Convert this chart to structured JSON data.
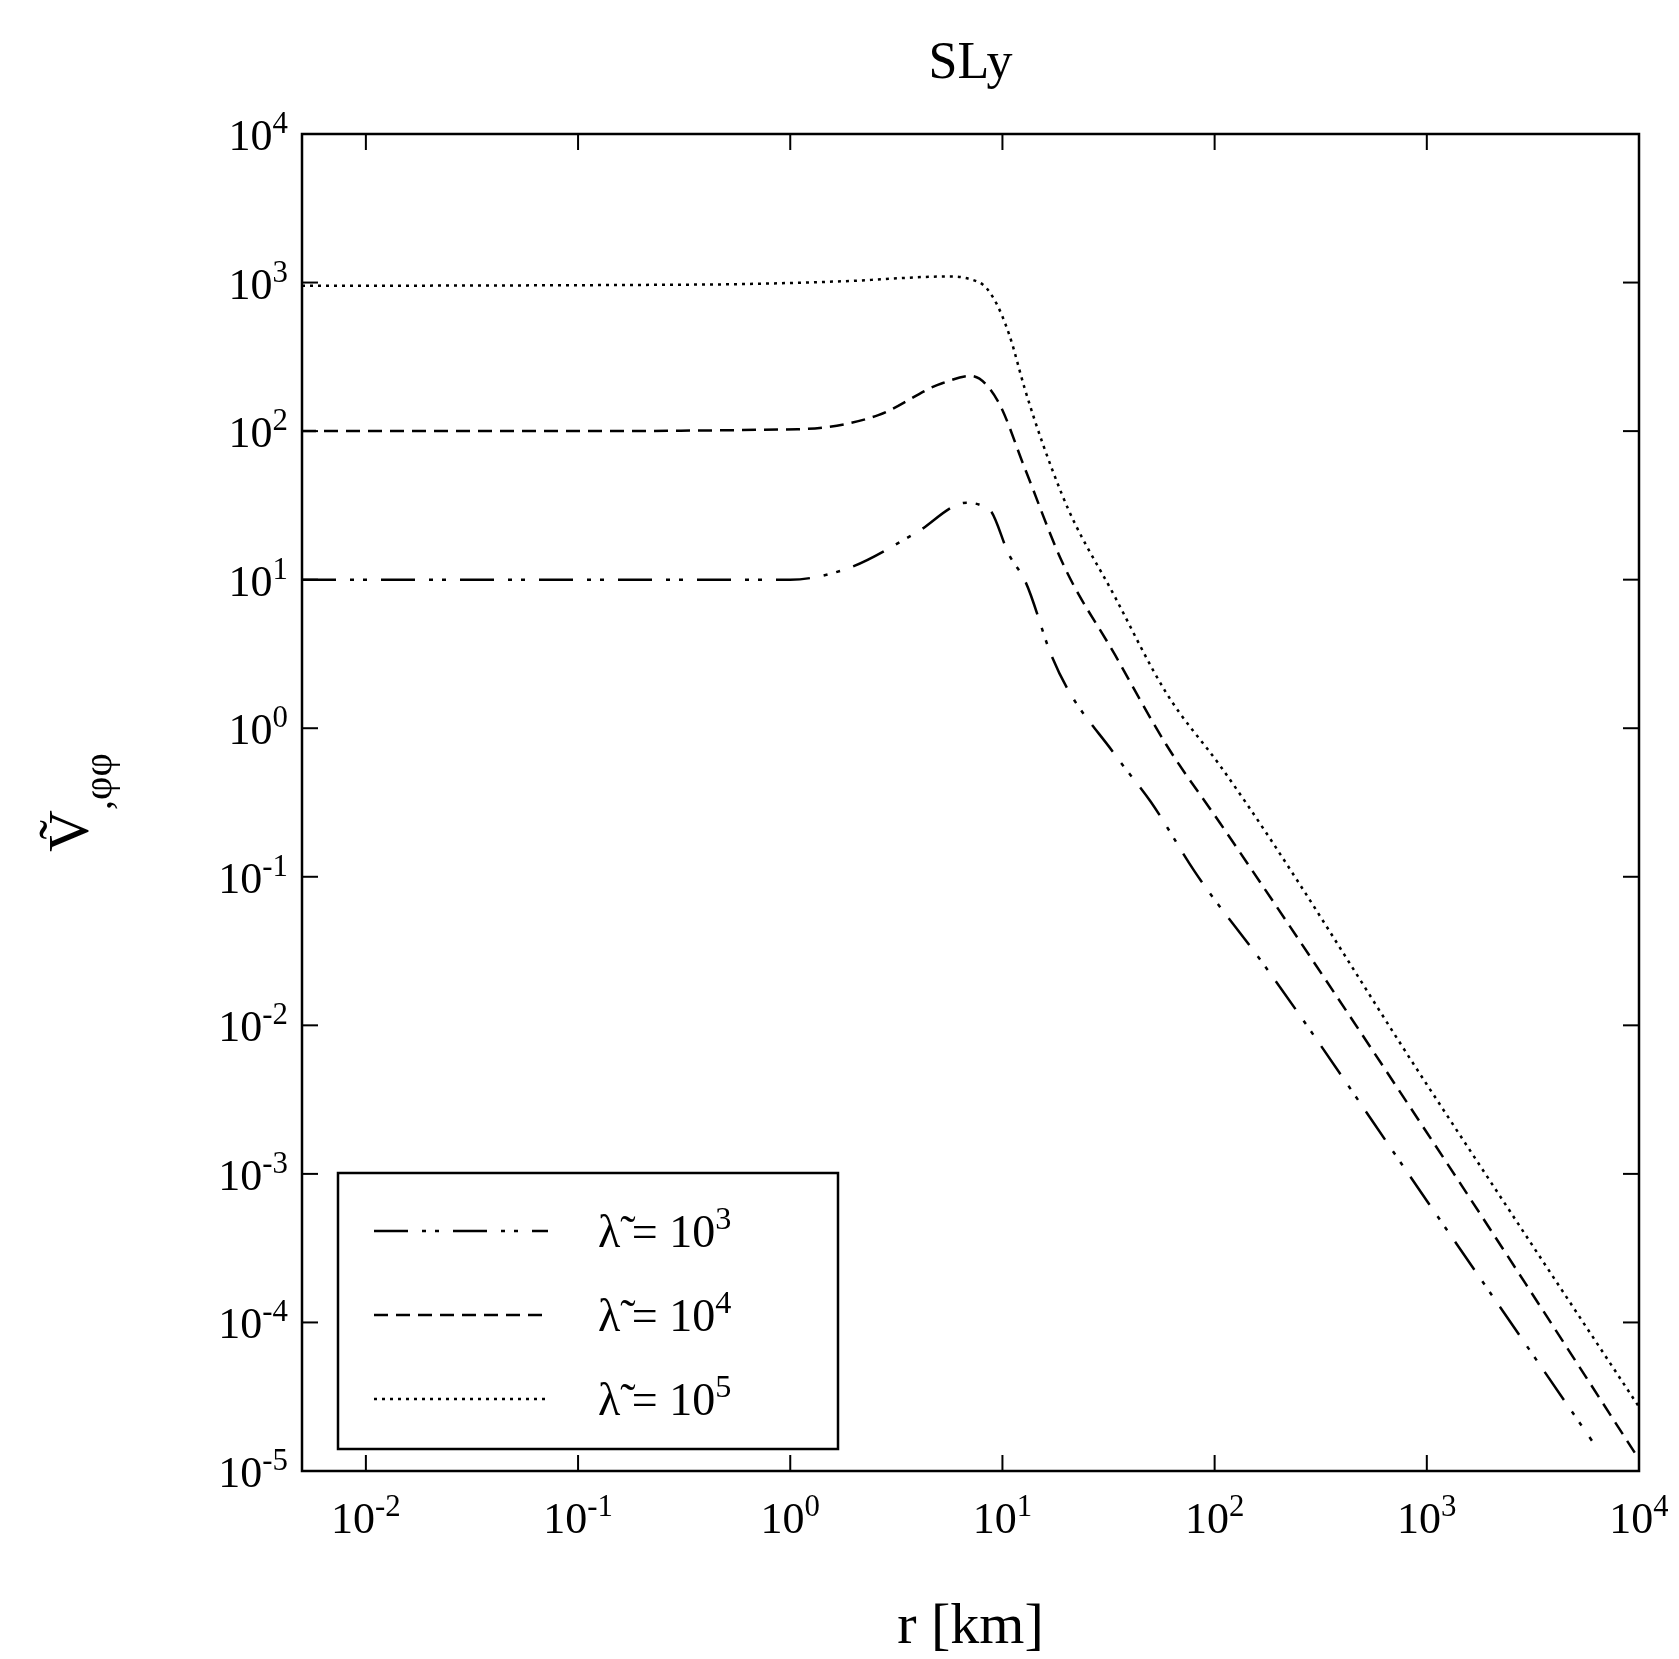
{
  "chart_data": {
    "type": "line",
    "title": "SLy",
    "xlabel": "r [km]",
    "ylabel": "Ṽ$_{,φφ}$",
    "log": "xy",
    "grid": false,
    "legend": "bottom left",
    "xlim": [
      0.005,
      10000
    ],
    "ylim": [
      1e-05,
      10000
    ],
    "xticks": [
      {
        "value": 0.01,
        "label": "10$^{-2}$"
      },
      {
        "value": 0.1,
        "label": "10$^{-1}$"
      },
      {
        "value": 1,
        "label": "10$^{0}$"
      },
      {
        "value": 10,
        "label": "10$^{1}$"
      },
      {
        "value": 100,
        "label": "10$^{2}$"
      },
      {
        "value": 1000,
        "label": "10$^{3}$"
      },
      {
        "value": 10000,
        "label": "10$^{4}$"
      }
    ],
    "yticks": [
      {
        "value": 1e-05,
        "label": "10$^{-5}$"
      },
      {
        "value": 0.0001,
        "label": "10$^{-4}$"
      },
      {
        "value": 0.001,
        "label": "10$^{-3}$"
      },
      {
        "value": 0.01,
        "label": "10$^{-2}$"
      },
      {
        "value": 0.1,
        "label": "10$^{-1}$"
      },
      {
        "value": 1,
        "label": "10$^{0}$"
      },
      {
        "value": 10,
        "label": "10$^{1}$"
      },
      {
        "value": 100,
        "label": "10$^{2}$"
      },
      {
        "value": 1000,
        "label": "10$^{3}$"
      },
      {
        "value": 10000,
        "label": "10$^{4}$"
      }
    ],
    "series": [
      {
        "name": "λ̃ = 10$^{3}$",
        "color": "#000000",
        "line_style": "dashdot",
        "x": [
          0.005,
          0.1,
          0.4,
          1,
          1.8,
          3.9,
          6.8,
          8.6,
          10.8,
          12.7,
          17,
          34,
          50,
          80,
          166,
          1000,
          6000
        ],
        "values": [
          10,
          10,
          10,
          10,
          11.7,
          20.6,
          33,
          30,
          14.5,
          10,
          3.1,
          0.66,
          0.32,
          0.11,
          0.027,
          0.00066,
          1.6e-05
        ]
      },
      {
        "name": "λ̃ = 10$^{4}$",
        "color": "#000000",
        "line_style": "dashed",
        "x": [
          0.005,
          0.1,
          1.08,
          2.6,
          5.2,
          7.1,
          9.5,
          12.7,
          19,
          34,
          59,
          106,
          1000,
          10000
        ],
        "values": [
          100,
          100,
          103,
          128,
          210,
          235,
          160,
          57,
          13.4,
          3.1,
          0.78,
          0.23,
          0.0019,
          1.2e-05
        ]
      },
      {
        "name": "λ̃ = 10$^{5}$",
        "color": "#000000",
        "line_style": "dotted",
        "x": [
          0.005,
          0.4,
          1.76,
          5.75,
          7.8,
          9.1,
          10.8,
          12.7,
          19,
          34,
          59,
          106,
          1000,
          10000
        ],
        "values": [
          950,
          970,
          1020,
          1100,
          1000,
          780,
          440,
          196,
          38,
          7.6,
          1.74,
          0.56,
          0.004,
          2.7e-05
        ]
      }
    ]
  }
}
